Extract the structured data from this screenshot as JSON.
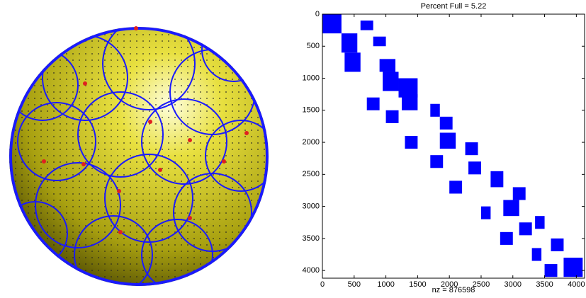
{
  "chart_data": {
    "type": "spy",
    "title": "Percent Full = 5.22",
    "xlabel": "nz = 876598",
    "color": "#0000ff",
    "xlim": [
      0,
      4130
    ],
    "ylim": [
      0,
      4120
    ],
    "y_direction": "reverse",
    "xticks": [
      0,
      500,
      1000,
      1500,
      2000,
      2500,
      3000,
      3500,
      4000
    ],
    "yticks": [
      0,
      500,
      1000,
      1500,
      2000,
      2500,
      3000,
      3500,
      4000
    ],
    "blocks": [
      [
        0,
        300,
        0,
        300
      ],
      [
        300,
        600,
        300,
        550
      ],
      [
        100,
        250,
        600,
        800
      ],
      [
        350,
        500,
        800,
        1000
      ],
      [
        600,
        900,
        350,
        600
      ],
      [
        700,
        900,
        900,
        1150
      ],
      [
        900,
        1200,
        950,
        1200
      ],
      [
        1000,
        1300,
        1200,
        1500
      ],
      [
        1250,
        1500,
        1250,
        1500
      ],
      [
        1300,
        1500,
        700,
        900
      ],
      [
        1500,
        1700,
        1000,
        1200
      ],
      [
        1400,
        1600,
        1700,
        1850
      ],
      [
        1600,
        1800,
        1850,
        2050
      ],
      [
        1850,
        2100,
        1850,
        2100
      ],
      [
        1900,
        2100,
        1300,
        1500
      ],
      [
        2000,
        2200,
        2250,
        2450
      ],
      [
        2300,
        2500,
        2300,
        2500
      ],
      [
        2200,
        2400,
        1700,
        1900
      ],
      [
        2450,
        2700,
        2650,
        2850
      ],
      [
        2600,
        2800,
        2000,
        2200
      ],
      [
        2700,
        2900,
        3000,
        3200
      ],
      [
        2900,
        3150,
        2850,
        3100
      ],
      [
        3000,
        3200,
        2500,
        2650
      ],
      [
        3150,
        3350,
        3350,
        3500
      ],
      [
        3250,
        3450,
        3100,
        3300
      ],
      [
        3400,
        3600,
        2800,
        3000
      ],
      [
        3500,
        3700,
        3600,
        3800
      ],
      [
        3650,
        3850,
        3300,
        3450
      ],
      [
        3800,
        4100,
        3800,
        4100
      ],
      [
        3900,
        4100,
        3500,
        3700
      ]
    ]
  }
}
